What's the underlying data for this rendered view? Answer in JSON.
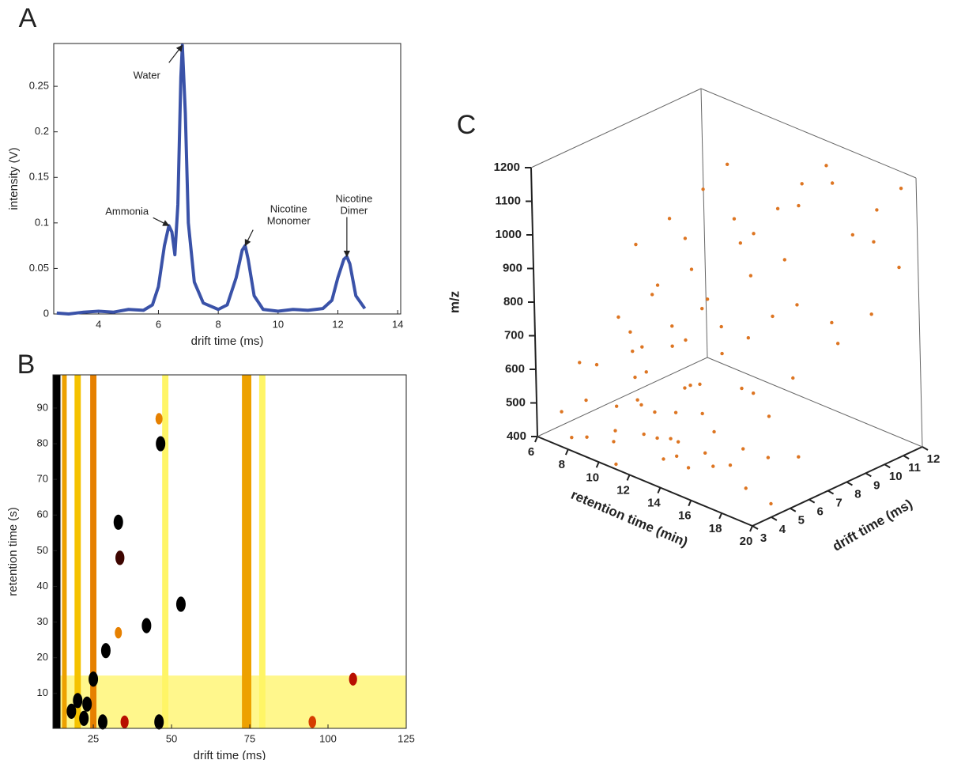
{
  "chart_data": [
    {
      "type": "line",
      "panel": "A",
      "xlabel": "drift time (ms)",
      "ylabel": "intensity (V)",
      "x": [
        2.6,
        3,
        3.5,
        4,
        4.5,
        5,
        5.5,
        5.8,
        6,
        6.2,
        6.35,
        6.45,
        6.55,
        6.65,
        6.75,
        6.8,
        6.9,
        7,
        7.2,
        7.5,
        8,
        8.3,
        8.6,
        8.8,
        8.9,
        9,
        9.2,
        9.5,
        10,
        10.5,
        11,
        11.5,
        11.8,
        12,
        12.2,
        12.3,
        12.4,
        12.6,
        12.9
      ],
      "values": [
        0.001,
        0,
        0.002,
        0.003,
        0.002,
        0.005,
        0.004,
        0.01,
        0.03,
        0.075,
        0.097,
        0.09,
        0.065,
        0.12,
        0.26,
        0.295,
        0.22,
        0.1,
        0.035,
        0.012,
        0.005,
        0.01,
        0.04,
        0.07,
        0.075,
        0.06,
        0.02,
        0.005,
        0.003,
        0.005,
        0.004,
        0.006,
        0.015,
        0.04,
        0.06,
        0.063,
        0.055,
        0.02,
        0.006
      ],
      "color": "#3a52a8",
      "xlim": [
        2.5,
        14.1
      ],
      "xticks": [
        4,
        6,
        8,
        10,
        12,
        14
      ],
      "ylim": [
        0,
        0.297
      ],
      "yticks": [
        0,
        0.05,
        0.1,
        0.15,
        0.2,
        0.25
      ],
      "annotations": [
        {
          "lines": [
            "Water"
          ],
          "x": 6.8,
          "y": 0.295
        },
        {
          "lines": [
            "Ammonia"
          ],
          "x": 6.35,
          "y": 0.097
        },
        {
          "lines": [
            "Nicotine",
            "Monomer"
          ],
          "x": 8.9,
          "y": 0.075
        },
        {
          "lines": [
            "Nicotine",
            "Dimer"
          ],
          "x": 12.3,
          "y": 0.063
        }
      ]
    },
    {
      "type": "heatmap",
      "panel": "B",
      "xlabel": "drift time (ms)",
      "ylabel": "retention time (s)",
      "xlim": [
        12.1,
        125
      ],
      "xticks": [
        25,
        50,
        75,
        100,
        125
      ],
      "ylim": [
        0.2,
        99.3
      ],
      "yticks": [
        10,
        20,
        30,
        40,
        50,
        60,
        70,
        80,
        90
      ],
      "colormap": [
        "#ffffff",
        "#ffee00",
        "#cc1100",
        "#000000"
      ],
      "bands": [
        {
          "x": [
            12.1,
            125
          ],
          "y": [
            0.2,
            15
          ],
          "z": 0.15
        },
        {
          "x": [
            12.1,
            14.5
          ],
          "z": 1
        },
        {
          "x": [
            15,
            16.5
          ],
          "z": 0.45
        },
        {
          "x": [
            19,
            21
          ],
          "z": 0.4
        },
        {
          "x": [
            24,
            26
          ],
          "z": 0.5
        },
        {
          "x": [
            47,
            49
          ],
          "z": 0.2
        },
        {
          "x": [
            72.5,
            75.5
          ],
          "z": 0.45
        },
        {
          "x": [
            78,
            80
          ],
          "z": 0.2
        }
      ],
      "spots": [
        {
          "x": 46.5,
          "y": 80,
          "z": 1
        },
        {
          "x": 46,
          "y": 87,
          "z": 0.5
        },
        {
          "x": 33,
          "y": 58,
          "z": 1
        },
        {
          "x": 33.5,
          "y": 48,
          "z": 0.9
        },
        {
          "x": 53,
          "y": 35,
          "z": 1
        },
        {
          "x": 42,
          "y": 29,
          "z": 1
        },
        {
          "x": 29,
          "y": 22,
          "z": 1
        },
        {
          "x": 33,
          "y": 27,
          "z": 0.5
        },
        {
          "x": 20,
          "y": 8,
          "z": 1
        },
        {
          "x": 23,
          "y": 7,
          "z": 1
        },
        {
          "x": 25,
          "y": 14,
          "z": 1
        },
        {
          "x": 28,
          "y": 2,
          "z": 1
        },
        {
          "x": 46,
          "y": 2,
          "z": 1
        },
        {
          "x": 22,
          "y": 3,
          "z": 1
        },
        {
          "x": 18,
          "y": 5,
          "z": 1
        },
        {
          "x": 35,
          "y": 2,
          "z": 0.7
        },
        {
          "x": 95,
          "y": 2,
          "z": 0.6
        },
        {
          "x": 108,
          "y": 14,
          "z": 0.7
        }
      ]
    },
    {
      "type": "scatter3d",
      "panel": "C",
      "xlabel": "retention time (min)",
      "ylabel": "drift time (ms)",
      "zlabel": "m/z",
      "color": "#dd7522",
      "xlim": [
        6,
        20
      ],
      "xticks": [
        6,
        8,
        10,
        12,
        14,
        16,
        18,
        20
      ],
      "ylim": [
        3,
        12
      ],
      "yticks": [
        3,
        4,
        5,
        6,
        7,
        8,
        9,
        10,
        11,
        12
      ],
      "zlim": [
        400,
        1200
      ],
      "zticks": [
        400,
        500,
        600,
        700,
        800,
        900,
        1000,
        1100,
        1200
      ],
      "x": [
        7,
        8,
        9,
        10,
        11,
        12,
        13,
        8.5,
        9.5,
        10.5,
        11.5,
        12.5,
        13.5,
        14,
        7.5,
        9,
        10,
        11,
        12,
        13,
        14.5,
        15,
        16,
        17,
        18,
        19,
        20,
        16.5,
        15.5,
        18.5,
        9,
        10,
        11,
        12,
        13,
        14,
        15,
        16,
        17,
        18,
        19,
        20,
        12.5,
        14.5,
        10.5,
        9,
        10,
        11,
        12,
        13,
        14,
        15,
        16,
        17,
        18,
        19,
        20,
        12,
        14,
        16,
        11,
        13,
        15,
        17,
        19,
        7,
        8,
        9.5,
        10,
        11,
        12,
        13,
        14,
        15,
        16,
        17,
        18,
        19,
        20,
        13.5
      ],
      "y": [
        3.5,
        4,
        3.2,
        5,
        4.5,
        3.8,
        5.5,
        6,
        4.2,
        3.6,
        6.5,
        4.8,
        3.3,
        5.2,
        5,
        6.2,
        7,
        3.1,
        6,
        4,
        3.5,
        4.5,
        3.8,
        5,
        4.2,
        3.5,
        4,
        6,
        5.5,
        6.5,
        5,
        6,
        5.5,
        7,
        6.5,
        8,
        7,
        7.5,
        8,
        9,
        8.5,
        9.5,
        5,
        6,
        4.5,
        6,
        7,
        8,
        8.5,
        9,
        9.5,
        10,
        10.5,
        11,
        11.5,
        12,
        11,
        6.5,
        7.5,
        9,
        7,
        8,
        9,
        10,
        10.5,
        4.5,
        3.2,
        5.5,
        3.9,
        4.8,
        5.5,
        3.6,
        4.5,
        3.2,
        4.2,
        3.5,
        5.5,
        4.8,
        5.5,
        6.8
      ],
      "z": [
        480,
        520,
        450,
        600,
        550,
        500,
        620,
        680,
        420,
        560,
        700,
        470,
        530,
        650,
        590,
        640,
        700,
        410,
        580,
        440,
        490,
        600,
        520,
        700,
        560,
        480,
        440,
        650,
        430,
        720,
        760,
        820,
        880,
        790,
        850,
        900,
        760,
        830,
        870,
        810,
        780,
        860,
        740,
        810,
        700,
        950,
        1020,
        1100,
        1180,
        980,
        1060,
        1140,
        1200,
        1000,
        1080,
        1150,
        960,
        920,
        1010,
        1120,
        980,
        1050,
        940,
        1180,
        1030,
        600,
        430,
        510,
        470,
        640,
        520,
        590,
        420,
        550,
        470,
        610,
        500,
        660,
        540,
        690
      ]
    }
  ]
}
